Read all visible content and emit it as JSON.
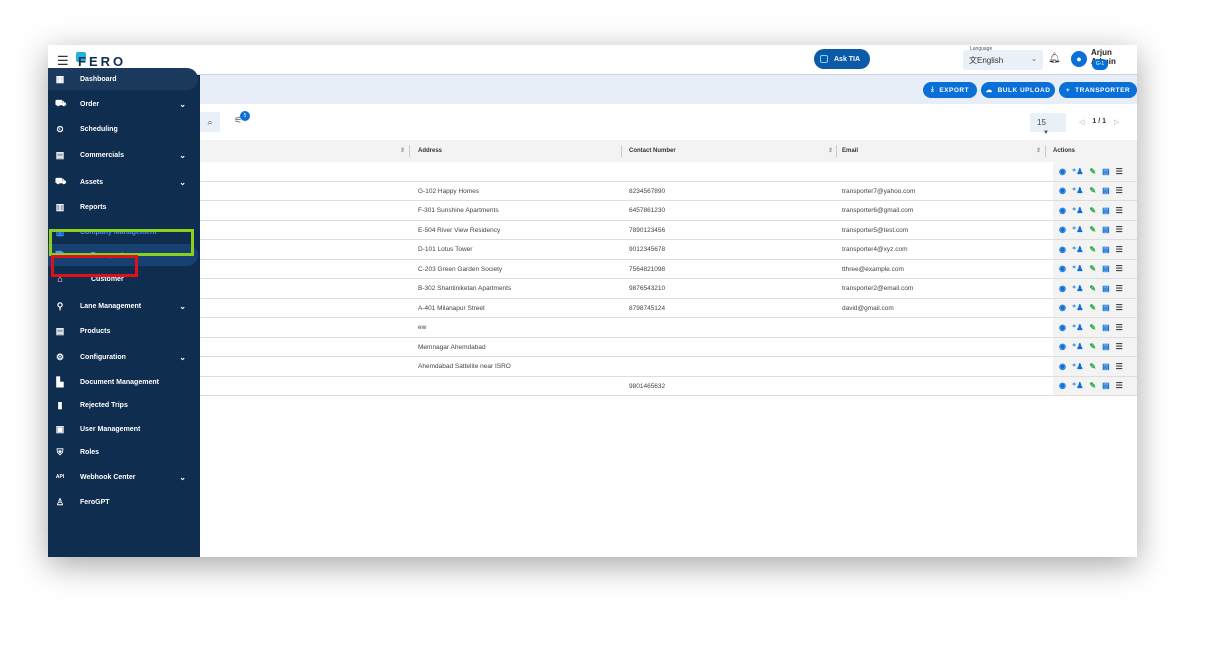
{
  "topbar": {
    "logo": "FERO",
    "ask_tia": "Ask TIA",
    "language_label": "Language",
    "language_value": "English",
    "user_name": "Arjun Admin",
    "user_badge": "G-1"
  },
  "sidebar": {
    "items": [
      {
        "label": "Dashboard",
        "icon": "dashboard-icon",
        "glyph": "▦",
        "chev": false
      },
      {
        "label": "Order",
        "icon": "order-icon",
        "glyph": "⛟",
        "chev": true
      },
      {
        "label": "Scheduling",
        "icon": "scheduling-icon",
        "glyph": "⏲",
        "chev": false
      },
      {
        "label": "Commercials",
        "icon": "commercials-icon",
        "glyph": "▤",
        "chev": true
      },
      {
        "label": "Assets",
        "icon": "truck-icon",
        "glyph": "⛟",
        "chev": true
      },
      {
        "label": "Reports",
        "icon": "reports-icon",
        "glyph": "▥",
        "chev": false
      },
      {
        "label": "Company Management",
        "icon": "company-icon",
        "glyph": "▥",
        "chev": true
      },
      {
        "label": "Transporter",
        "icon": "transporter-icon",
        "glyph": "⛟",
        "chev": false
      },
      {
        "label": "Customer",
        "icon": "customer-icon",
        "glyph": "⌂",
        "chev": false
      },
      {
        "label": "Lane Management",
        "icon": "lane-icon",
        "glyph": "⚲",
        "chev": true
      },
      {
        "label": "Products",
        "icon": "products-icon",
        "glyph": "▤",
        "chev": false
      },
      {
        "label": "Configuration",
        "icon": "gear-icon",
        "glyph": "⚙",
        "chev": true
      },
      {
        "label": "Document Management",
        "icon": "document-icon",
        "glyph": "▙",
        "chev": false
      },
      {
        "label": "Rejected Trips",
        "icon": "trash-icon",
        "glyph": "▮",
        "chev": false
      },
      {
        "label": "User Management",
        "icon": "user-management-icon",
        "glyph": "▣",
        "chev": false
      },
      {
        "label": "Roles",
        "icon": "shield-icon",
        "glyph": "⛨",
        "chev": false
      },
      {
        "label": "Webhook Center",
        "icon": "api-icon",
        "glyph": "API",
        "chev": true
      },
      {
        "label": "FeroGPT",
        "icon": "robot-icon",
        "glyph": "♙",
        "chev": false
      }
    ]
  },
  "toolbar": {
    "export": "EXPORT",
    "bulk_upload": "BULK UPLOAD",
    "add_transporter": "TRANSPORTER",
    "filter_count": "5",
    "page_size": "15",
    "page": "1 / 1"
  },
  "table": {
    "headers": {
      "address": "Address",
      "contact": "Contact Number",
      "email": "Email",
      "actions": "Actions"
    },
    "rows": [
      {
        "address": "",
        "contact": "",
        "email": ""
      },
      {
        "address": "G-102 Happy Homes",
        "contact": "8234567890",
        "email": "transporter7@yahoo.com"
      },
      {
        "address": "F-301 Sunshine Apartments",
        "contact": "6457861230",
        "email": "transporter6@gmail.com"
      },
      {
        "address": "E-504 River View Residency",
        "contact": "7890123456",
        "email": "transporter5@test.com"
      },
      {
        "address": "D-101 Lotus Tower",
        "contact": "9012345678",
        "email": "transporter4@xyz.com"
      },
      {
        "address": "C-203 Green Garden Society",
        "contact": "7564821098",
        "email": "tthree@example.com"
      },
      {
        "address": "B-302 Shantiniketan Apartments",
        "contact": "9876543210",
        "email": "transporter2@email.com"
      },
      {
        "address": "A-401 Milanapur Street",
        "contact": "8798745124",
        "email": "david@gmail.com"
      },
      {
        "address": "ew",
        "contact": "",
        "email": ""
      },
      {
        "address": "Memnagar Ahemdabad",
        "contact": "",
        "email": ""
      },
      {
        "address": "Ahemdabad Sattelite near ISRO",
        "contact": "",
        "email": ""
      },
      {
        "address": "",
        "contact": "9801465632",
        "email": ""
      }
    ]
  },
  "colors": {
    "sidebar": "#0f2d4f",
    "accent": "#0b6fd8",
    "highlight_green": "#8bd11c",
    "highlight_red": "#e0101a"
  }
}
